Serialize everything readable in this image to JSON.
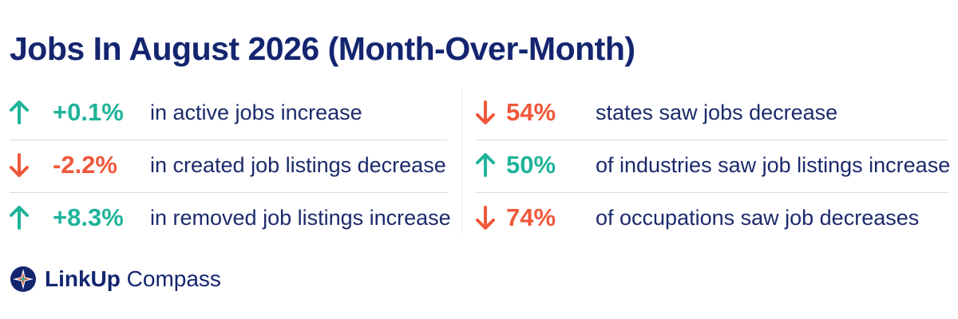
{
  "title": "Jobs In August 2026 (Month-Over-Month)",
  "colors": {
    "up": "#1fb39a",
    "down": "#f0573a",
    "navy": "#142570",
    "divider": "#cfdbe9"
  },
  "left_stats": [
    {
      "direction": "up",
      "icon": "arrow-up-icon",
      "value": "+0.1%",
      "label": "in active jobs increase"
    },
    {
      "direction": "down",
      "icon": "arrow-down-icon",
      "value": "-2.2%",
      "label": "in created job listings decrease"
    },
    {
      "direction": "up",
      "icon": "arrow-up-icon",
      "value": "+8.3%",
      "label": "in removed job listings increase"
    }
  ],
  "right_stats": [
    {
      "direction": "down",
      "icon": "arrow-down-icon",
      "value": "54%",
      "label": "states saw jobs decrease"
    },
    {
      "direction": "up",
      "icon": "arrow-up-icon",
      "value": "50%",
      "label": "of industries saw job listings increase"
    },
    {
      "direction": "down",
      "icon": "arrow-down-icon",
      "value": "74%",
      "label": "of occupations saw job decreases"
    }
  ],
  "brand": {
    "icon": "compass-icon",
    "name_bold": "LinkUp",
    "name_light": " Compass"
  }
}
